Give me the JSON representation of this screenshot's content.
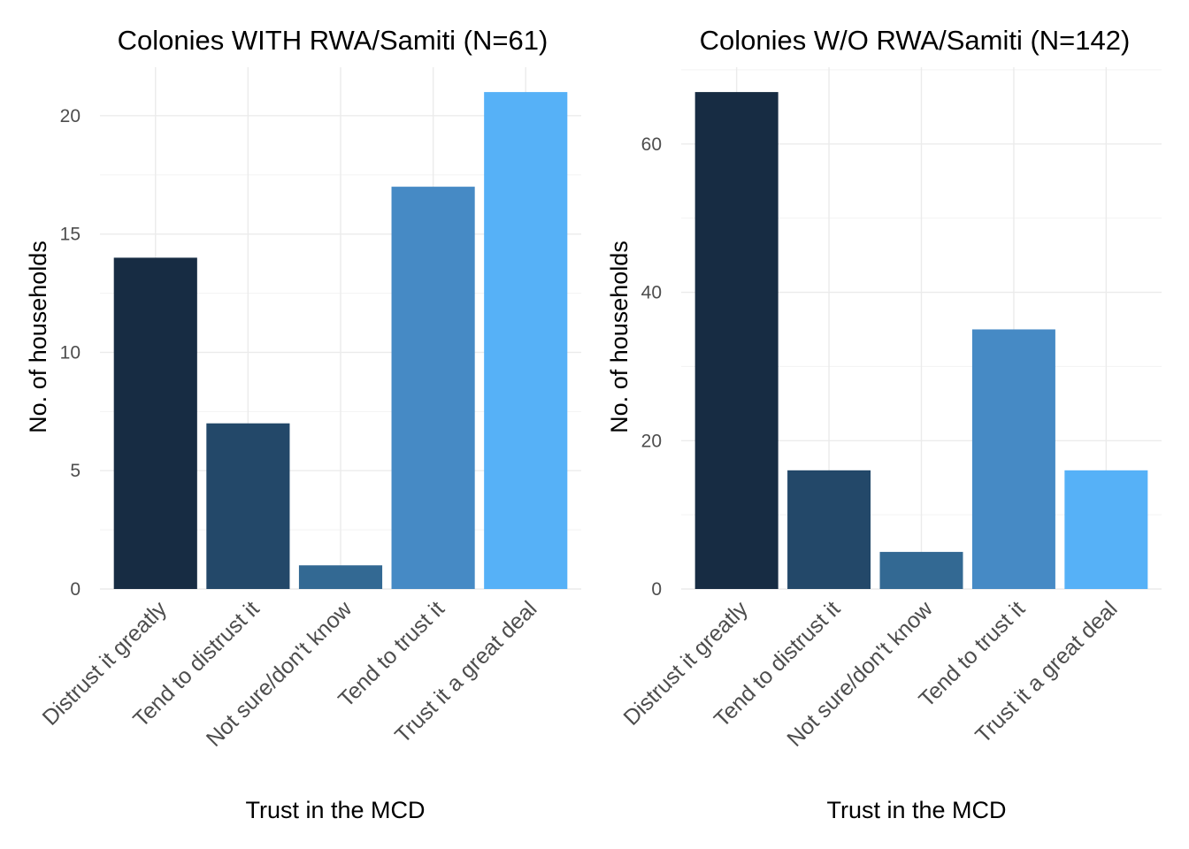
{
  "chart_data": [
    {
      "type": "bar",
      "title": "Colonies WITH RWA/Samiti (N=61)",
      "xlabel": "Trust in the MCD",
      "ylabel": "No. of households",
      "categories": [
        "Distrust it greatly",
        "Tend to distrust it",
        "Not sure/don't know",
        "Tend to trust it",
        "Trust it a great deal"
      ],
      "values": [
        14,
        7,
        1,
        17,
        21
      ],
      "colors": [
        "#172c43",
        "#234869",
        "#336993",
        "#468ac5",
        "#56b1f7"
      ],
      "yticks": [
        0,
        5,
        10,
        15,
        20
      ],
      "ylim": [
        0,
        22.05
      ],
      "grid": true
    },
    {
      "type": "bar",
      "title": "Colonies W/O RWA/Samiti (N=142)",
      "xlabel": "Trust in the MCD",
      "ylabel": "No. of households",
      "categories": [
        "Distrust it greatly",
        "Tend to distrust it",
        "Not sure/don't know",
        "Tend to trust it",
        "Trust it a great deal"
      ],
      "values": [
        67,
        16,
        5,
        35,
        16
      ],
      "colors": [
        "#172c43",
        "#234869",
        "#336993",
        "#468ac5",
        "#56b1f7"
      ],
      "yticks": [
        0,
        20,
        40,
        60
      ],
      "ylim": [
        0,
        70.35
      ],
      "grid": true
    }
  ]
}
